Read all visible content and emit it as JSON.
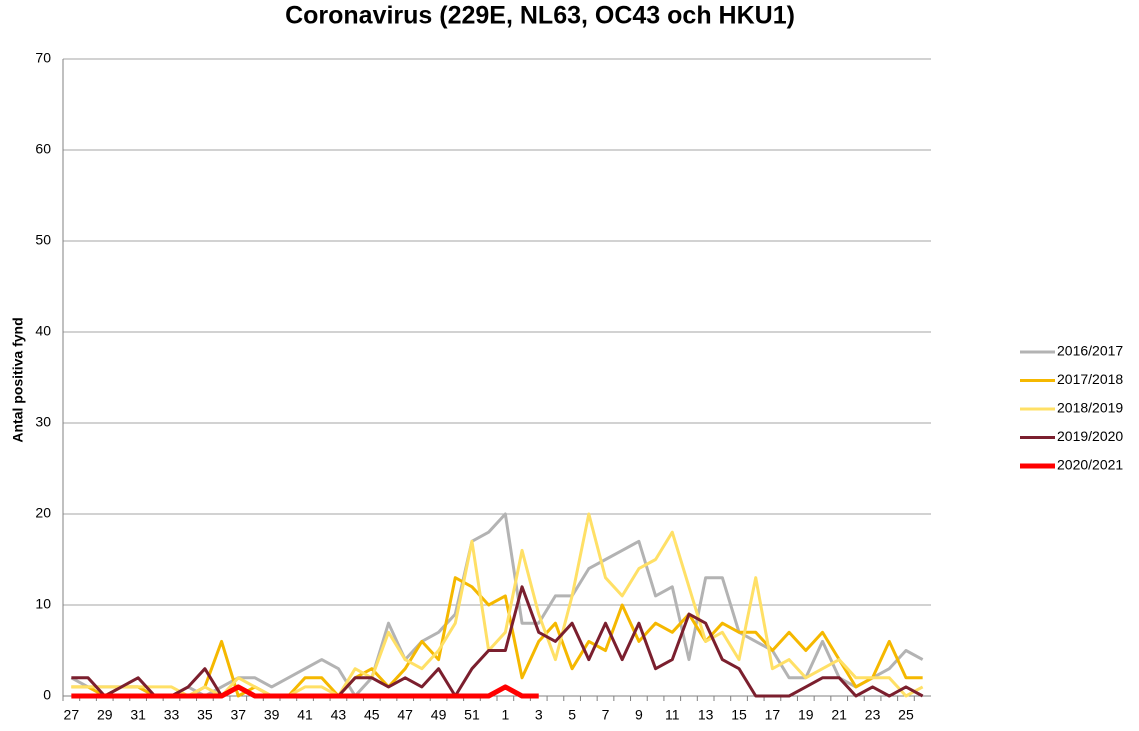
{
  "chart_data": {
    "type": "line",
    "title": "Coronavirus (229E, NL63, OC43 och HKU1)",
    "y_label": "Antal positiva fynd",
    "categories": [
      "27",
      null,
      "29",
      null,
      "31",
      null,
      "33",
      null,
      "35",
      null,
      "37",
      null,
      "39",
      null,
      "41",
      null,
      "43",
      null,
      "45",
      null,
      "47",
      null,
      "49",
      null,
      "51",
      null,
      "1",
      null,
      "3",
      null,
      "5",
      null,
      "7",
      null,
      "9",
      null,
      "11",
      null,
      "13",
      null,
      "15",
      null,
      "17",
      null,
      "19",
      null,
      "21",
      null,
      "23",
      null,
      "25",
      null
    ],
    "series": [
      {
        "name": "2016/2017",
        "color": "#b3b3b3",
        "values": [
          2,
          1,
          1,
          1,
          1,
          0,
          0,
          1,
          0,
          1,
          2,
          2,
          1,
          2,
          3,
          4,
          3,
          0,
          2,
          8,
          4,
          6,
          7,
          9,
          17,
          18,
          20,
          8,
          8,
          11,
          11,
          14,
          15,
          16,
          17,
          11,
          12,
          4,
          13,
          13,
          7,
          6,
          5,
          2,
          2,
          6,
          2,
          1,
          2,
          3,
          5,
          4
        ]
      },
      {
        "name": "2017/2018",
        "color": "#f5b800",
        "values": [
          1,
          1,
          0,
          1,
          1,
          0,
          0,
          0,
          1,
          6,
          0,
          1,
          0,
          0,
          2,
          2,
          0,
          2,
          3,
          1,
          3,
          6,
          4,
          13,
          12,
          10,
          11,
          2,
          6,
          8,
          3,
          6,
          5,
          10,
          6,
          8,
          7,
          9,
          6,
          8,
          7,
          7,
          5,
          7,
          5,
          7,
          4,
          1,
          2,
          6,
          2,
          2
        ]
      },
      {
        "name": "2018/2019",
        "color": "#ffe066",
        "values": [
          1,
          1,
          1,
          1,
          1,
          1,
          1,
          0,
          1,
          0,
          2,
          1,
          0,
          0,
          1,
          1,
          0,
          3,
          2,
          7,
          4,
          3,
          5,
          8,
          17,
          5,
          7,
          16,
          9,
          4,
          11,
          20,
          13,
          11,
          14,
          15,
          18,
          12,
          6,
          7,
          4,
          13,
          3,
          4,
          2,
          3,
          4,
          2,
          2,
          2,
          0,
          1
        ]
      },
      {
        "name": "2019/2020",
        "color": "#7b1f2e",
        "values": [
          2,
          2,
          0,
          1,
          2,
          0,
          0,
          1,
          3,
          0,
          1,
          0,
          0,
          0,
          0,
          0,
          0,
          2,
          2,
          1,
          2,
          1,
          3,
          0,
          3,
          5,
          5,
          12,
          7,
          6,
          8,
          4,
          8,
          4,
          8,
          3,
          4,
          9,
          8,
          4,
          3,
          0,
          0,
          0,
          1,
          2,
          2,
          0,
          1,
          0,
          1,
          0
        ]
      },
      {
        "name": "2020/2021",
        "color": "#ff0000",
        "values": [
          0,
          0,
          0,
          0,
          0,
          0,
          0,
          0,
          0,
          0,
          1,
          0,
          0,
          0,
          0,
          0,
          0,
          0,
          0,
          0,
          0,
          0,
          0,
          0,
          0,
          0,
          1,
          0,
          0,
          null,
          null,
          null,
          null,
          null,
          null,
          null,
          null,
          null,
          null,
          null,
          null,
          null,
          null,
          null,
          null,
          null,
          null,
          null,
          null,
          null,
          null,
          null
        ]
      }
    ],
    "ylim": [
      0,
      70
    ],
    "yticks": [
      0,
      10,
      20,
      30,
      40,
      50,
      60,
      70
    ],
    "grid": true,
    "legend": "right"
  }
}
